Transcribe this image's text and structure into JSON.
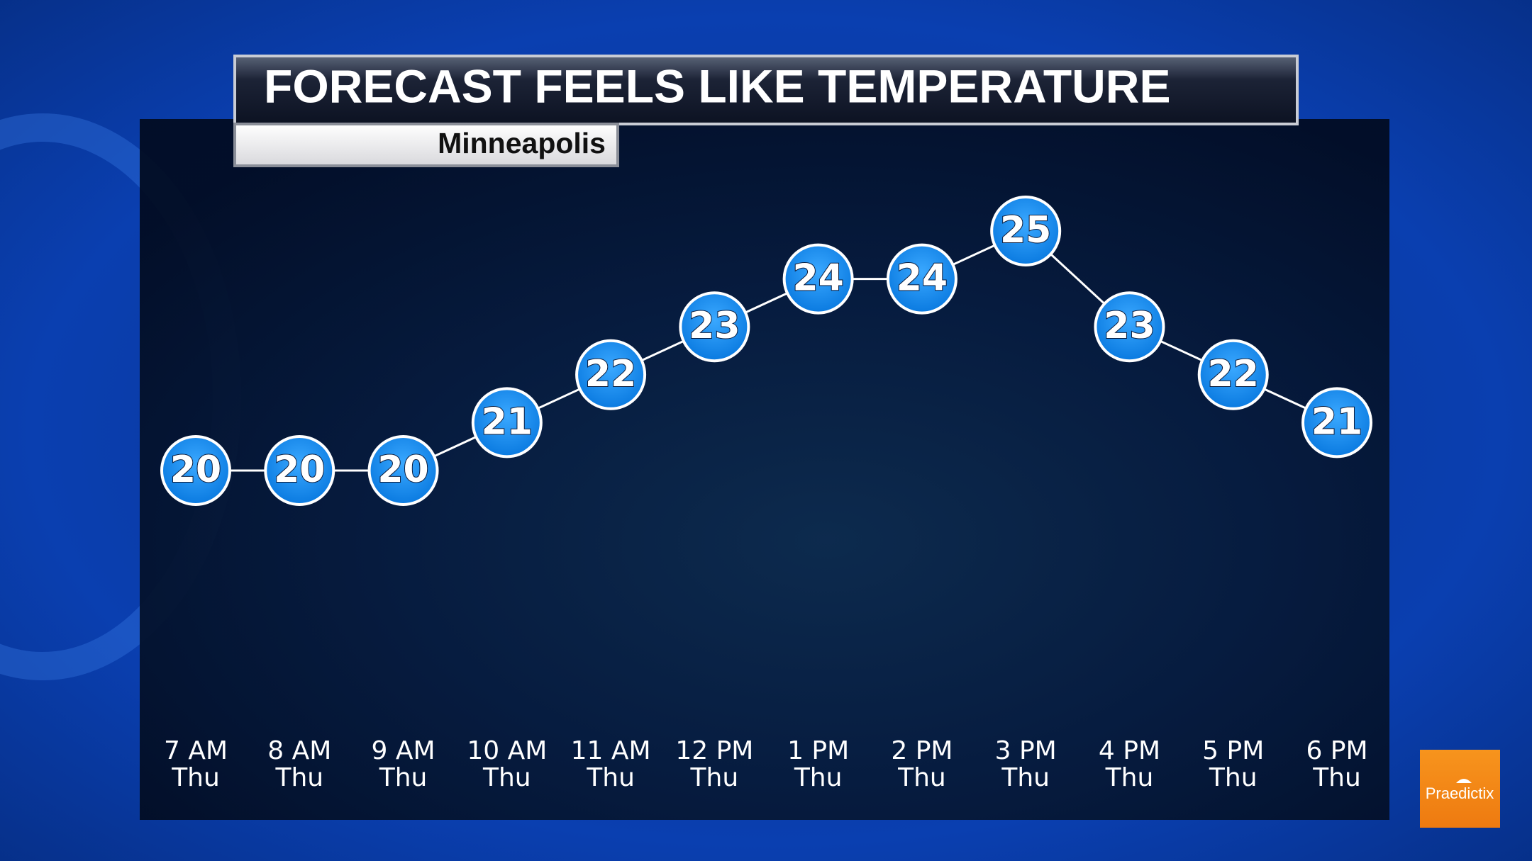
{
  "chart_data": {
    "type": "line",
    "title": "FORECAST FEELS LIKE TEMPERATURE",
    "subtitle": "Minneapolis",
    "categories": [
      "7 AM",
      "8 AM",
      "9 AM",
      "10 AM",
      "11 AM",
      "12 PM",
      "1 PM",
      "2 PM",
      "3 PM",
      "4 PM",
      "5 PM",
      "6 PM"
    ],
    "category_days": [
      "Thu",
      "Thu",
      "Thu",
      "Thu",
      "Thu",
      "Thu",
      "Thu",
      "Thu",
      "Thu",
      "Thu",
      "Thu",
      "Thu"
    ],
    "values": [
      20,
      20,
      20,
      21,
      22,
      23,
      24,
      24,
      25,
      23,
      22,
      21
    ],
    "color": "#1e90f0"
  },
  "logo": "Praedictix"
}
